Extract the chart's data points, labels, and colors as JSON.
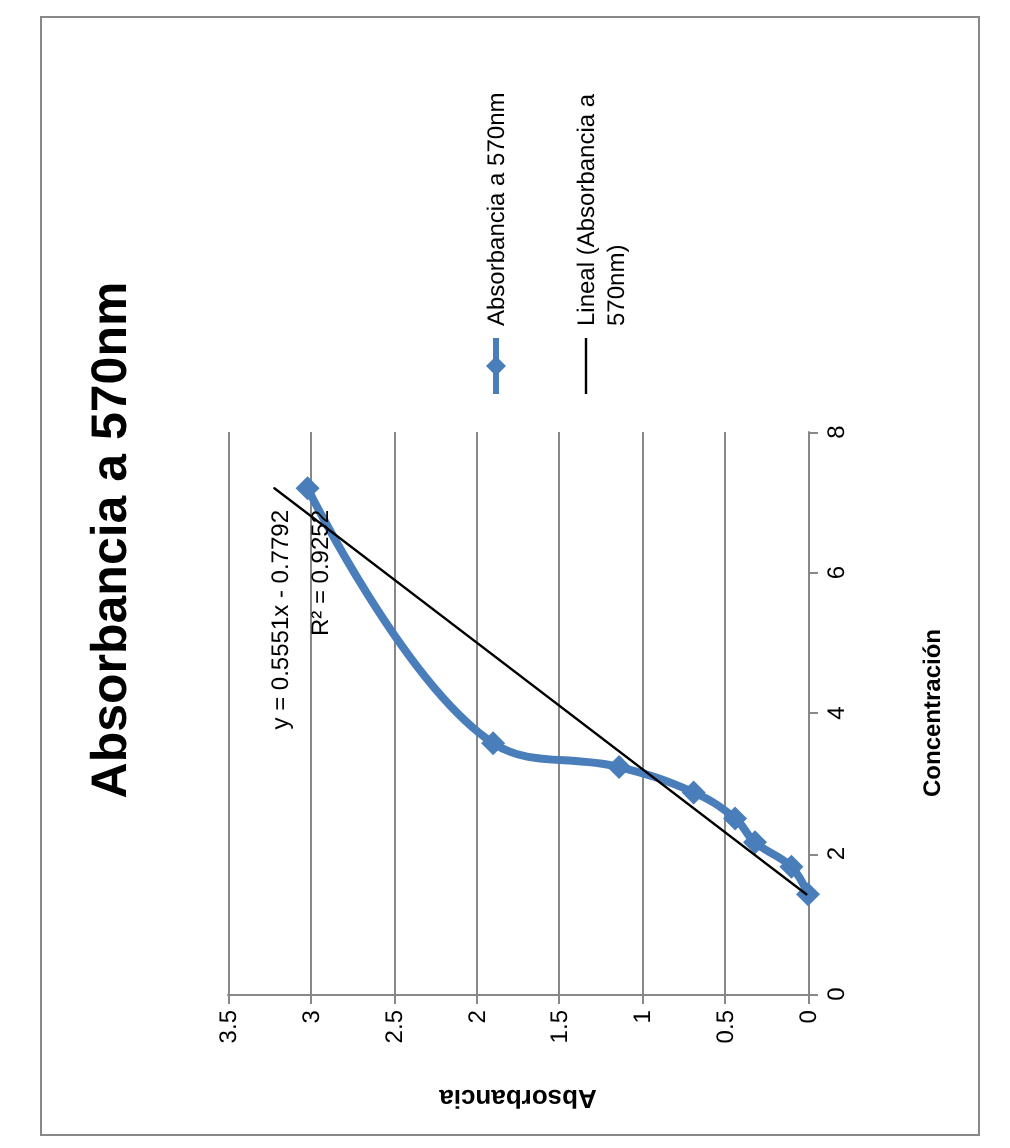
{
  "chart_data": {
    "type": "line",
    "title": "Absorbancia a 570nm",
    "xlabel": "Absorbancia",
    "ylabel": "Concentración",
    "annotations": [
      "y = 0.5551x - 0.7792",
      "R² = 0.9252"
    ],
    "series": [
      {
        "name": "Absorbancia a 570nm",
        "color": "#4a7ebb",
        "marker": "diamond",
        "x": [
          0,
          0.1,
          0.32,
          0.44,
          0.69,
          1.14,
          1.9,
          3.02
        ],
        "values": [
          1.42,
          1.81,
          2.16,
          2.5,
          2.87,
          3.23,
          3.57,
          7.2
        ]
      },
      {
        "name": "Lineal (Absorbancia a 570nm)",
        "color": "#000000",
        "marker": "none",
        "x": [
          0.01,
          3.22
        ],
        "values": [
          1.42,
          7.2
        ]
      }
    ],
    "xlim": [
      3.5,
      0
    ],
    "xticks": [
      0,
      0.5,
      1,
      1.5,
      2,
      2.5,
      3,
      3.5
    ],
    "ylim": [
      0,
      8
    ],
    "yticks": [
      0,
      2,
      4,
      6,
      8
    ],
    "grid": "x",
    "legend": "top"
  }
}
